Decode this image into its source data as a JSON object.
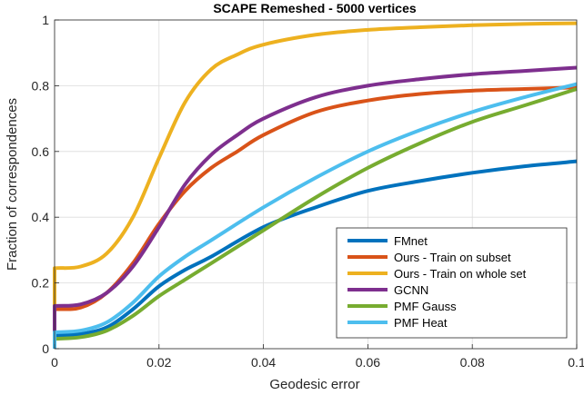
{
  "chart_data": {
    "type": "line",
    "title": "SCAPE Remeshed - 5000 vertices",
    "xlabel": "Geodesic error",
    "ylabel": "Fraction of correspondences",
    "xlim": [
      0,
      0.1
    ],
    "ylim": [
      0,
      1
    ],
    "x_ticks": [
      0,
      0.02,
      0.04,
      0.06,
      0.08,
      0.1
    ],
    "x_tick_labels": [
      "0",
      "0.02",
      "0.04",
      "0.06",
      "0.08",
      "0.1"
    ],
    "y_ticks": [
      0,
      0.2,
      0.4,
      0.6,
      0.8,
      1
    ],
    "y_tick_labels": [
      "0",
      "0.2",
      "0.4",
      "0.6",
      "0.8",
      "1"
    ],
    "grid": true,
    "legend_position": "bottom-right",
    "series": [
      {
        "name": "FMnet",
        "color": "#0072BD",
        "x": [
          0,
          0,
          0.005,
          0.01,
          0.015,
          0.02,
          0.025,
          0.03,
          0.04,
          0.05,
          0.06,
          0.07,
          0.08,
          0.09,
          0.1
        ],
        "y": [
          0,
          0.04,
          0.045,
          0.065,
          0.12,
          0.19,
          0.24,
          0.28,
          0.37,
          0.43,
          0.48,
          0.51,
          0.535,
          0.555,
          0.57
        ]
      },
      {
        "name": "Ours - Train on subset",
        "color": "#D95319",
        "x": [
          0,
          0,
          0.005,
          0.01,
          0.015,
          0.02,
          0.025,
          0.03,
          0.035,
          0.04,
          0.05,
          0.06,
          0.07,
          0.08,
          0.09,
          0.1
        ],
        "y": [
          0,
          0.12,
          0.125,
          0.17,
          0.26,
          0.38,
          0.48,
          0.55,
          0.6,
          0.65,
          0.72,
          0.755,
          0.775,
          0.785,
          0.79,
          0.795
        ]
      },
      {
        "name": "Ours - Train on whole set",
        "color": "#EDB120",
        "x": [
          0,
          0,
          0.005,
          0.01,
          0.015,
          0.02,
          0.025,
          0.03,
          0.035,
          0.04,
          0.05,
          0.06,
          0.07,
          0.08,
          0.09,
          0.1
        ],
        "y": [
          0,
          0.245,
          0.25,
          0.29,
          0.4,
          0.58,
          0.75,
          0.85,
          0.895,
          0.925,
          0.955,
          0.97,
          0.978,
          0.984,
          0.988,
          0.99
        ]
      },
      {
        "name": "GCNN",
        "color": "#7E2F8E",
        "x": [
          0,
          0,
          0.005,
          0.01,
          0.015,
          0.02,
          0.025,
          0.03,
          0.035,
          0.04,
          0.05,
          0.06,
          0.07,
          0.08,
          0.09,
          0.1
        ],
        "y": [
          0,
          0.13,
          0.135,
          0.17,
          0.25,
          0.37,
          0.5,
          0.59,
          0.65,
          0.7,
          0.765,
          0.8,
          0.82,
          0.835,
          0.845,
          0.855
        ]
      },
      {
        "name": "PMF Gauss",
        "color": "#77AC30",
        "x": [
          0,
          0,
          0.005,
          0.01,
          0.015,
          0.02,
          0.025,
          0.03,
          0.04,
          0.05,
          0.06,
          0.07,
          0.08,
          0.09,
          0.1
        ],
        "y": [
          0,
          0.03,
          0.035,
          0.055,
          0.1,
          0.16,
          0.21,
          0.26,
          0.36,
          0.46,
          0.55,
          0.625,
          0.69,
          0.74,
          0.79
        ]
      },
      {
        "name": "PMF Heat",
        "color": "#4DBEEE",
        "x": [
          0,
          0,
          0.005,
          0.01,
          0.015,
          0.02,
          0.025,
          0.03,
          0.04,
          0.05,
          0.06,
          0.07,
          0.08,
          0.09,
          0.1
        ],
        "y": [
          0,
          0.05,
          0.055,
          0.08,
          0.14,
          0.22,
          0.28,
          0.33,
          0.43,
          0.52,
          0.6,
          0.665,
          0.72,
          0.765,
          0.805
        ]
      }
    ]
  }
}
